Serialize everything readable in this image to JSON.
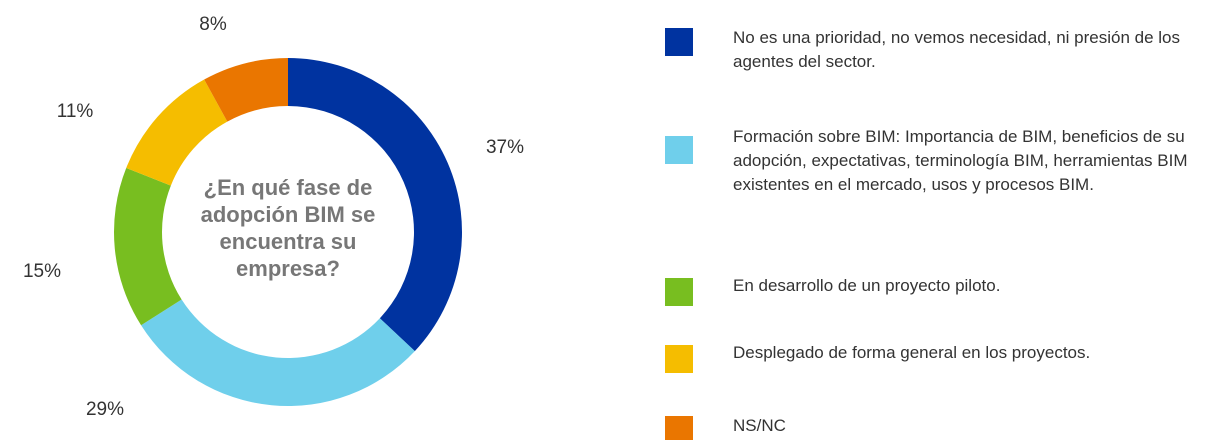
{
  "chart_data": {
    "type": "pie",
    "donut": true,
    "title": "¿En qué fase de adopción BIM se encuentra su empresa?",
    "series": [
      {
        "name": "No es una prioridad, no vemos necesidad, ni presión de los agentes del sector.",
        "color": "#0033a0"
      },
      {
        "name": "Formación sobre BIM: Importancia de BIM, beneficios de su adopción, expectativas, terminología BIM, herramientas BIM existentes en el mercado, usos y procesos BIM.",
        "color": "#6fcfeb"
      },
      {
        "name": "En desarrollo de un proyecto piloto.",
        "color": "#78be20"
      },
      {
        "name": "Desplegado de forma general en los proyectos.",
        "color": "#f5bd00"
      },
      {
        "name": "NS/NC",
        "color": "#ea7600"
      }
    ],
    "values": [
      37,
      29,
      15,
      11,
      8
    ],
    "value_labels": [
      "37%",
      "29%",
      "15%",
      "11%",
      "8%"
    ],
    "legend": "right"
  }
}
